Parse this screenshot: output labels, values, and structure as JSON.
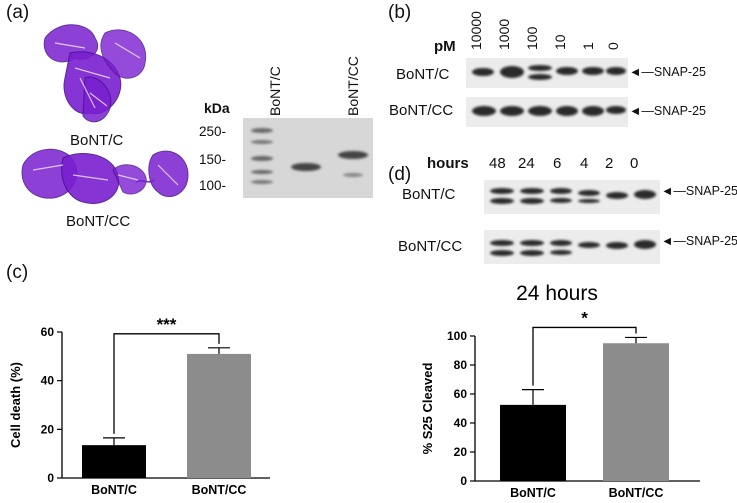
{
  "panels": {
    "a": {
      "label": "(a)",
      "protein_top": "BoNT/C",
      "protein_bottom": "BoNT/CC",
      "gel": {
        "unit": "kDa",
        "markers": [
          "250-",
          "150-",
          "100-"
        ],
        "lanes": [
          "BoNT/C",
          "BoNT/CC"
        ]
      }
    },
    "b": {
      "label": "(b)",
      "unit": "pM",
      "concentrations": [
        "10000",
        "1000",
        "100",
        "10",
        "1",
        "0"
      ],
      "rows": [
        "BoNT/C",
        "BoNT/CC"
      ],
      "target": "SNAP-25"
    },
    "c": {
      "label": "(c)"
    },
    "d": {
      "label": "(d)",
      "unit": "hours",
      "times": [
        "48",
        "24",
        "6",
        "4",
        "2",
        "0"
      ],
      "rows": [
        "BoNT/C",
        "BoNT/CC"
      ],
      "target": "SNAP-25",
      "chart_title": "24 hours"
    }
  },
  "colors": {
    "protein": "#7a1fd0",
    "bar_c": "#000000",
    "bar_cc": "#8c8c8c"
  },
  "chart_data": [
    {
      "type": "bar",
      "title": "",
      "xlabel": "",
      "ylabel": "Cell death (%)",
      "categories": [
        "BoNT/C",
        "BoNT/CC"
      ],
      "values": [
        13.5,
        51
      ],
      "errors": [
        3,
        2.5
      ],
      "ylim": [
        0,
        60
      ],
      "yticks": [
        "0",
        "20",
        "40",
        "60"
      ],
      "significance": "***"
    },
    {
      "type": "bar",
      "title": "24 hours",
      "xlabel": "",
      "ylabel": "% S25 Cleaved",
      "categories": [
        "BoNT/C",
        "BoNT/CC"
      ],
      "values": [
        52.5,
        95
      ],
      "errors": [
        10.5,
        4
      ],
      "ylim": [
        0,
        100
      ],
      "yticks": [
        "0",
        "20",
        "40",
        "60",
        "80",
        "100"
      ],
      "significance": "*"
    }
  ]
}
